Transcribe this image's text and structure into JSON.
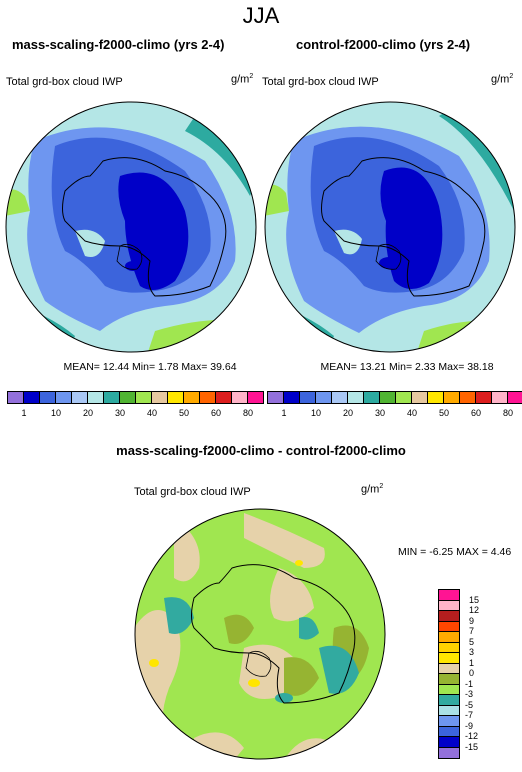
{
  "figure": {
    "season": "JJA",
    "diff_title": "mass-scaling-f2000-climo - control-f2000-climo",
    "diff_var": "Total grd-box cloud IWP",
    "diff_units": "g/m",
    "diff_units_exp": "2",
    "diff_stats": "MIN =  -6.25 MAX =   4.46"
  },
  "panels": [
    {
      "title": "mass-scaling-f2000-climo (yrs 2-4)",
      "var": "Total grd-box cloud IWP",
      "units": "g/m",
      "units_exp": "2",
      "stats": "MEAN=  12.44  Min=   1.78  Max=  39.64"
    },
    {
      "title": "control-f2000-climo (yrs 2-4)",
      "var": "Total grd-box cloud IWP",
      "units": "g/m",
      "units_exp": "2",
      "stats": "MEAN=  13.21  Min=   2.33  Max=  38.18"
    }
  ],
  "colorbar_abs": {
    "labels": [
      "1",
      "10",
      "20",
      "30",
      "40",
      "50",
      "60",
      "80"
    ],
    "colors": [
      "#9370db",
      "#0000c8",
      "#3c64dc",
      "#6e96f0",
      "#aac8f5",
      "#b4e6e6",
      "#2daaa0",
      "#50b432",
      "#a0e650",
      "#e6c8a0",
      "#ffe600",
      "#ffaa00",
      "#ff6400",
      "#dc1e1e",
      "#ffb4c8",
      "#ff1493"
    ]
  },
  "colorbar_diff": {
    "labels": [
      "15",
      "12",
      "9",
      "7",
      "5",
      "3",
      "1",
      "0",
      "-1",
      "-3",
      "-5",
      "-7",
      "-9",
      "-12",
      "-15"
    ],
    "colors": [
      "#ff1493",
      "#ffb4c8",
      "#b41e1e",
      "#ff4600",
      "#ffaa00",
      "#ffd200",
      "#ffe600",
      "#e6d2aa",
      "#96b432",
      "#a0e650",
      "#32aaa0",
      "#aae0e6",
      "#6e96f0",
      "#3c64dc",
      "#0000c8",
      "#9370db"
    ]
  }
}
